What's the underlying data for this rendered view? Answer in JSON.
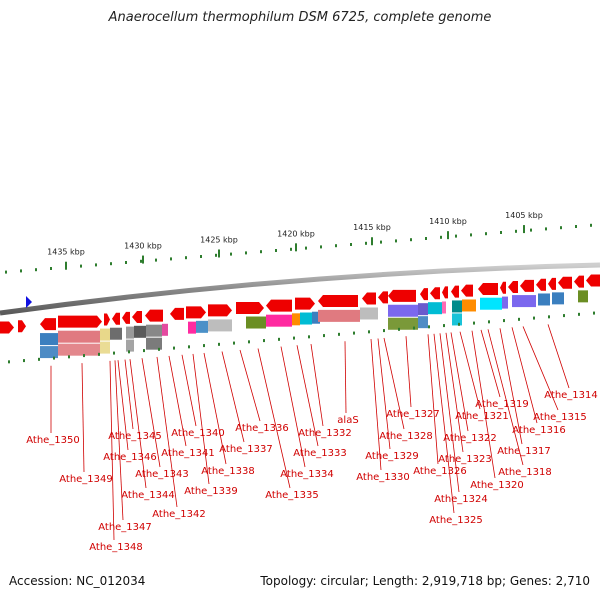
{
  "title": "Anaerocellum thermophilum DSM 6725, complete genome",
  "accession_text": "Accession: NC_012034",
  "summary_text": "Topology: circular; Length: 2,919,718 bp; Genes: 2,710",
  "scale_ticks": [
    {
      "label": "1435 kbp",
      "kbp": 1435
    },
    {
      "label": "1430 kbp",
      "kbp": 1430
    },
    {
      "label": "1425 kbp",
      "kbp": 1425
    },
    {
      "label": "1420 kbp",
      "kbp": 1420
    },
    {
      "label": "1415 kbp",
      "kbp": 1415
    },
    {
      "label": "1410 kbp",
      "kbp": 1410
    },
    {
      "label": "1405 kbp",
      "kbp": 1405
    }
  ],
  "gene_labels": [
    "Athe_1350",
    "Athe_1349",
    "Athe_1348",
    "Athe_1347",
    "Athe_1346",
    "Athe_1345",
    "Athe_1344",
    "Athe_1343",
    "Athe_1342",
    "Athe_1341",
    "Athe_1340",
    "Athe_1339",
    "Athe_1338",
    "Athe_1337",
    "Athe_1336",
    "Athe_1335",
    "Athe_1334",
    "Athe_1333",
    "Athe_1332",
    "alaS",
    "Athe_1330",
    "Athe_1329",
    "Athe_1328",
    "Athe_1327",
    "Athe_1326",
    "Athe_1325",
    "Athe_1324",
    "Athe_1323",
    "Athe_1322",
    "Athe_1321",
    "Athe_1320",
    "Athe_1319",
    "Athe_1318",
    "Athe_1317",
    "Athe_1316",
    "Athe_1315",
    "Athe_1314"
  ],
  "colors": {
    "gene_arrow": "#ee0000",
    "backbone": "#888888",
    "scale": "#2e7d2e",
    "label": "#d00000",
    "strand_marker": "#1010e0"
  }
}
